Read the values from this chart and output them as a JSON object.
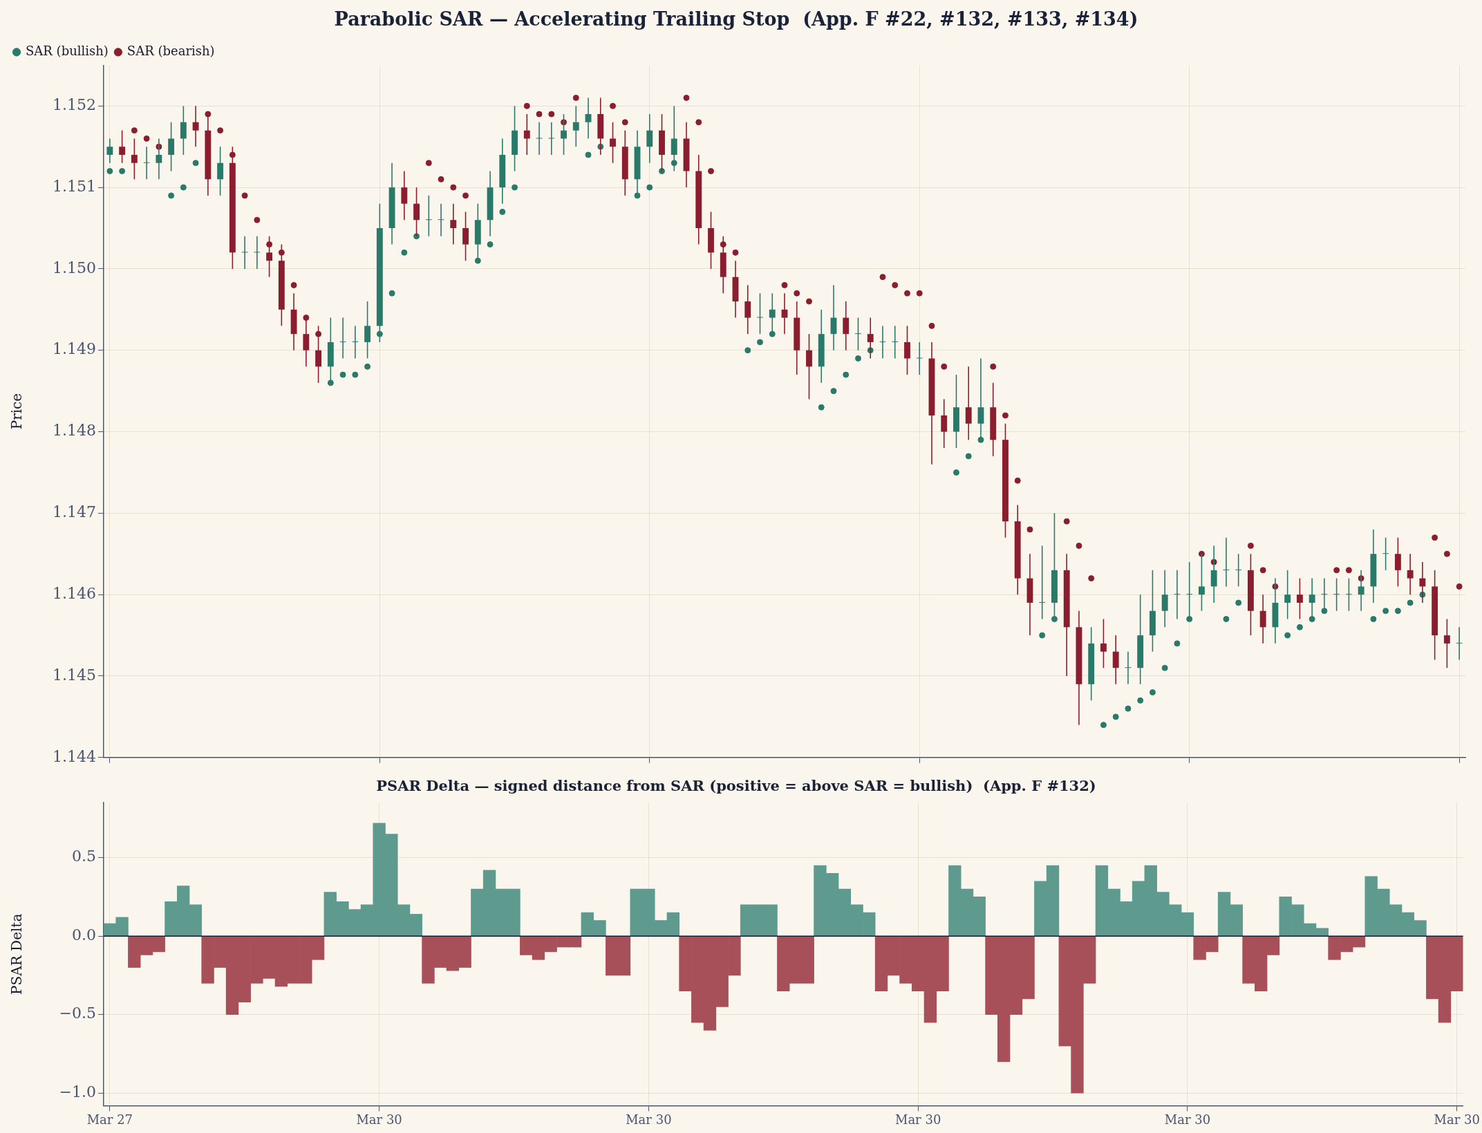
{
  "chart_data": [
    {
      "type": "candlestick",
      "title": "Parabolic SAR — Accelerating Trailing Stop  (App. F #22, #132, #133, #134)",
      "ylabel": "Price",
      "categories": [
        null,
        null,
        null,
        null,
        null,
        null,
        null,
        null,
        null,
        null,
        null,
        null,
        null,
        null,
        null,
        null,
        null,
        null,
        null,
        null,
        null,
        null,
        null,
        null,
        null,
        null,
        null,
        null,
        null,
        null,
        null,
        null,
        null,
        null,
        null,
        null,
        null,
        null,
        null,
        null,
        null,
        null,
        null,
        null,
        null,
        null,
        null,
        null,
        null,
        null,
        null,
        null,
        null,
        null,
        null,
        null,
        null,
        null,
        null,
        null,
        null,
        null,
        null,
        null,
        null,
        null,
        null,
        null,
        null,
        null,
        null,
        null,
        null,
        null,
        null,
        null,
        null,
        null,
        null,
        null,
        null,
        null,
        null,
        null,
        null,
        null,
        null,
        null,
        null,
        null,
        null,
        null,
        null,
        null,
        null,
        null,
        null,
        null,
        null,
        null,
        null,
        null,
        null,
        null,
        null,
        null,
        null,
        null,
        null,
        null,
        null
      ],
      "ohlc": [
        [
          1.1514,
          1.1516,
          1.1513,
          1.1515
        ],
        [
          1.1515,
          1.1517,
          1.1513,
          1.1514
        ],
        [
          1.1514,
          1.1516,
          1.1511,
          1.1513
        ],
        [
          1.1513,
          1.1515,
          1.1511,
          1.1513
        ],
        [
          1.1513,
          1.1516,
          1.1511,
          1.1514
        ],
        [
          1.1514,
          1.1518,
          1.1512,
          1.1516
        ],
        [
          1.1516,
          1.152,
          1.1514,
          1.1518
        ],
        [
          1.1518,
          1.152,
          1.1515,
          1.1517
        ],
        [
          1.1517,
          1.1519,
          1.1509,
          1.1511
        ],
        [
          1.1511,
          1.1515,
          1.1509,
          1.1513
        ],
        [
          1.1513,
          1.1515,
          1.15,
          1.1502
        ],
        [
          1.1502,
          1.1504,
          1.15,
          1.1502
        ],
        [
          1.1502,
          1.1504,
          1.15,
          1.1502
        ],
        [
          1.1502,
          1.1504,
          1.1499,
          1.1501
        ],
        [
          1.1501,
          1.1503,
          1.1493,
          1.1495
        ],
        [
          1.1495,
          1.1497,
          1.149,
          1.1492
        ],
        [
          1.1492,
          1.1494,
          1.1488,
          1.149
        ],
        [
          1.149,
          1.1493,
          1.1486,
          1.1488
        ],
        [
          1.1488,
          1.1494,
          1.1486,
          1.1491
        ],
        [
          1.1491,
          1.1494,
          1.1489,
          1.1491
        ],
        [
          1.1491,
          1.1493,
          1.1489,
          1.1491
        ],
        [
          1.1491,
          1.1496,
          1.1489,
          1.1493
        ],
        [
          1.1493,
          1.1508,
          1.1491,
          1.1505
        ],
        [
          1.1505,
          1.1513,
          1.1503,
          1.151
        ],
        [
          1.151,
          1.1512,
          1.1506,
          1.1508
        ],
        [
          1.1508,
          1.151,
          1.1504,
          1.1506
        ],
        [
          1.1506,
          1.1509,
          1.1504,
          1.1506
        ],
        [
          1.1506,
          1.1508,
          1.1504,
          1.1506
        ],
        [
          1.1506,
          1.1508,
          1.1503,
          1.1505
        ],
        [
          1.1505,
          1.1507,
          1.1501,
          1.1503
        ],
        [
          1.1503,
          1.1508,
          1.1501,
          1.1506
        ],
        [
          1.1506,
          1.1512,
          1.1504,
          1.151
        ],
        [
          1.151,
          1.1516,
          1.1508,
          1.1514
        ],
        [
          1.1514,
          1.152,
          1.1512,
          1.1517
        ],
        [
          1.1517,
          1.1519,
          1.1514,
          1.1516
        ],
        [
          1.1516,
          1.1518,
          1.1514,
          1.1516
        ],
        [
          1.1516,
          1.1518,
          1.1514,
          1.1516
        ],
        [
          1.1516,
          1.1519,
          1.1514,
          1.1517
        ],
        [
          1.1517,
          1.152,
          1.1515,
          1.1518
        ],
        [
          1.1518,
          1.1521,
          1.1516,
          1.1519
        ],
        [
          1.1519,
          1.1521,
          1.1514,
          1.1516
        ],
        [
          1.1516,
          1.1518,
          1.1513,
          1.1515
        ],
        [
          1.1515,
          1.1517,
          1.1509,
          1.1511
        ],
        [
          1.1511,
          1.1517,
          1.1509,
          1.1515
        ],
        [
          1.1515,
          1.1519,
          1.1513,
          1.1517
        ],
        [
          1.1517,
          1.1519,
          1.1512,
          1.1514
        ],
        [
          1.1514,
          1.152,
          1.1512,
          1.1516
        ],
        [
          1.1516,
          1.1518,
          1.151,
          1.1512
        ],
        [
          1.1512,
          1.1514,
          1.1503,
          1.1505
        ],
        [
          1.1505,
          1.1507,
          1.15,
          1.1502
        ],
        [
          1.1502,
          1.1504,
          1.1497,
          1.1499
        ],
        [
          1.1499,
          1.1501,
          1.1494,
          1.1496
        ],
        [
          1.1496,
          1.1498,
          1.1492,
          1.1494
        ],
        [
          1.1494,
          1.1497,
          1.1492,
          1.1494
        ],
        [
          1.1494,
          1.1497,
          1.1492,
          1.1495
        ],
        [
          1.1495,
          1.1497,
          1.1492,
          1.1494
        ],
        [
          1.1494,
          1.1496,
          1.1487,
          1.149
        ],
        [
          1.149,
          1.1492,
          1.1484,
          1.1488
        ],
        [
          1.1488,
          1.1495,
          1.1486,
          1.1492
        ],
        [
          1.1492,
          1.1498,
          1.149,
          1.1494
        ],
        [
          1.1494,
          1.1496,
          1.149,
          1.1492
        ],
        [
          1.1492,
          1.1494,
          1.149,
          1.1492
        ],
        [
          1.1492,
          1.1494,
          1.1489,
          1.1491
        ],
        [
          1.1491,
          1.1493,
          1.1489,
          1.1491
        ],
        [
          1.1491,
          1.1493,
          1.1489,
          1.1491
        ],
        [
          1.1491,
          1.1493,
          1.1487,
          1.1489
        ],
        [
          1.1489,
          1.1491,
          1.1487,
          1.1489
        ],
        [
          1.1489,
          1.1491,
          1.1476,
          1.1482
        ],
        [
          1.1482,
          1.1484,
          1.1478,
          1.148
        ],
        [
          1.148,
          1.1487,
          1.1478,
          1.1483
        ],
        [
          1.1483,
          1.1488,
          1.1479,
          1.1481
        ],
        [
          1.1481,
          1.1489,
          1.1479,
          1.1483
        ],
        [
          1.1483,
          1.1486,
          1.1477,
          1.1479
        ],
        [
          1.1479,
          1.1481,
          1.1467,
          1.1469
        ],
        [
          1.1469,
          1.1471,
          1.146,
          1.1462
        ],
        [
          1.1462,
          1.1465,
          1.1455,
          1.1459
        ],
        [
          1.1459,
          1.1466,
          1.1457,
          1.1459
        ],
        [
          1.1459,
          1.147,
          1.1457,
          1.1463
        ],
        [
          1.1463,
          1.1465,
          1.145,
          1.1456
        ],
        [
          1.1456,
          1.1458,
          1.1444,
          1.1449
        ],
        [
          1.1449,
          1.1456,
          1.1447,
          1.1454
        ],
        [
          1.1454,
          1.1457,
          1.1451,
          1.1453
        ],
        [
          1.1453,
          1.1455,
          1.1449,
          1.1451
        ],
        [
          1.1451,
          1.1453,
          1.1449,
          1.1451
        ],
        [
          1.1451,
          1.146,
          1.1449,
          1.1455
        ],
        [
          1.1455,
          1.1463,
          1.1453,
          1.1458
        ],
        [
          1.1458,
          1.1463,
          1.1456,
          1.146
        ],
        [
          1.146,
          1.1463,
          1.1457,
          1.146
        ],
        [
          1.146,
          1.1464,
          1.1457,
          1.146
        ],
        [
          1.146,
          1.1465,
          1.1458,
          1.1461
        ],
        [
          1.1461,
          1.1466,
          1.1459,
          1.1463
        ],
        [
          1.1463,
          1.1467,
          1.1461,
          1.1463
        ],
        [
          1.1463,
          1.1465,
          1.1461,
          1.1463
        ],
        [
          1.1463,
          1.1465,
          1.1455,
          1.1458
        ],
        [
          1.1458,
          1.146,
          1.1454,
          1.1456
        ],
        [
          1.1456,
          1.1462,
          1.1454,
          1.1459
        ],
        [
          1.1459,
          1.1463,
          1.1457,
          1.146
        ],
        [
          1.146,
          1.1462,
          1.1457,
          1.1459
        ],
        [
          1.1459,
          1.1462,
          1.1457,
          1.146
        ],
        [
          1.146,
          1.1462,
          1.1458,
          1.146
        ],
        [
          1.146,
          1.1462,
          1.1458,
          1.146
        ],
        [
          1.146,
          1.1462,
          1.1458,
          1.146
        ],
        [
          1.146,
          1.1463,
          1.1458,
          1.1461
        ],
        [
          1.1461,
          1.1468,
          1.1459,
          1.1465
        ],
        [
          1.1465,
          1.1467,
          1.1463,
          1.1465
        ],
        [
          1.1465,
          1.1467,
          1.1461,
          1.1463
        ],
        [
          1.1463,
          1.1465,
          1.146,
          1.1462
        ],
        [
          1.1462,
          1.1464,
          1.1459,
          1.1461
        ],
        [
          1.1461,
          1.1463,
          1.1452,
          1.1455
        ],
        [
          1.1455,
          1.1457,
          1.1451,
          1.1454
        ],
        [
          1.1454,
          1.1456,
          1.1452,
          1.1454
        ]
      ],
      "colors": [
        "#2a7a6a",
        "#8b1e2e",
        "#8b1e2e",
        "#2a7a6a",
        "#2a7a6a",
        "#2a7a6a",
        "#2a7a6a",
        "#8b1e2e",
        "#8b1e2e",
        "#2a7a6a",
        "#8b1e2e",
        "#2a7a6a",
        "#2a7a6a",
        "#8b1e2e",
        "#8b1e2e",
        "#8b1e2e",
        "#8b1e2e",
        "#8b1e2e",
        "#2a7a6a",
        "#2a7a6a",
        "#2a7a6a",
        "#2a7a6a",
        "#2a7a6a",
        "#2a7a6a",
        "#8b1e2e",
        "#8b1e2e",
        "#2a7a6a",
        "#2a7a6a",
        "#8b1e2e",
        "#8b1e2e",
        "#2a7a6a",
        "#2a7a6a",
        "#2a7a6a",
        "#2a7a6a",
        "#8b1e2e",
        "#2a7a6a",
        "#2a7a6a",
        "#2a7a6a",
        "#2a7a6a",
        "#2a7a6a",
        "#8b1e2e",
        "#8b1e2e",
        "#8b1e2e",
        "#2a7a6a",
        "#2a7a6a",
        "#8b1e2e",
        "#2a7a6a",
        "#8b1e2e",
        "#8b1e2e",
        "#8b1e2e",
        "#8b1e2e",
        "#8b1e2e",
        "#8b1e2e",
        "#2a7a6a",
        "#2a7a6a",
        "#8b1e2e",
        "#8b1e2e",
        "#8b1e2e",
        "#2a7a6a",
        "#2a7a6a",
        "#8b1e2e",
        "#2a7a6a",
        "#8b1e2e",
        "#2a7a6a",
        "#2a7a6a",
        "#8b1e2e",
        "#2a7a6a",
        "#8b1e2e",
        "#8b1e2e",
        "#2a7a6a",
        "#8b1e2e",
        "#2a7a6a",
        "#8b1e2e",
        "#8b1e2e",
        "#8b1e2e",
        "#8b1e2e",
        "#2a7a6a",
        "#2a7a6a",
        "#8b1e2e",
        "#8b1e2e",
        "#2a7a6a",
        "#8b1e2e",
        "#8b1e2e",
        "#2a7a6a",
        "#2a7a6a",
        "#2a7a6a",
        "#2a7a6a",
        "#2a7a6a",
        "#2a7a6a",
        "#2a7a6a",
        "#2a7a6a",
        "#2a7a6a",
        "#2a7a6a",
        "#8b1e2e",
        "#8b1e2e",
        "#2a7a6a",
        "#2a7a6a",
        "#8b1e2e",
        "#2a7a6a",
        "#2a7a6a",
        "#2a7a6a",
        "#2a7a6a",
        "#2a7a6a",
        "#2a7a6a",
        "#2a7a6a",
        "#8b1e2e",
        "#8b1e2e",
        "#8b1e2e",
        "#8b1e2e",
        "#8b1e2e",
        "#2a7a6a"
      ],
      "series": [
        {
          "type": "scatter",
          "name": "SAR (bullish)",
          "color": "#2a7a6a",
          "values": [
            1.1512,
            1.1512,
            null,
            null,
            null,
            1.1509,
            1.151,
            1.1513,
            null,
            null,
            null,
            null,
            null,
            null,
            null,
            null,
            null,
            null,
            1.1486,
            1.1487,
            1.1487,
            1.1488,
            1.1492,
            1.1497,
            1.1502,
            1.1504,
            null,
            null,
            null,
            null,
            1.1501,
            1.1503,
            1.1507,
            1.151,
            null,
            null,
            null,
            null,
            null,
            1.1514,
            1.1515,
            null,
            null,
            1.1509,
            1.151,
            1.1512,
            1.1513,
            null,
            null,
            null,
            null,
            null,
            1.149,
            1.1491,
            1.1492,
            null,
            null,
            null,
            1.1483,
            1.1485,
            1.1487,
            1.1489,
            1.149,
            null,
            null,
            null,
            null,
            null,
            null,
            1.1475,
            1.1477,
            1.1479,
            null,
            null,
            null,
            null,
            1.1455,
            1.1457,
            null,
            null,
            null,
            1.1444,
            1.1445,
            1.1446,
            1.1447,
            1.1448,
            1.1451,
            1.1454,
            1.1457,
            null,
            null,
            1.1457,
            1.1459,
            null,
            null,
            null,
            1.1455,
            1.1456,
            1.1457,
            1.1458,
            null,
            null,
            null,
            1.1457,
            1.1458,
            1.1458,
            1.1459,
            1.146,
            null,
            null,
            null
          ]
        },
        {
          "type": "scatter",
          "name": "SAR (bearish)",
          "color": "#8b1e2e",
          "values": [
            null,
            null,
            1.1517,
            1.1516,
            1.1515,
            null,
            null,
            null,
            1.1519,
            1.1517,
            1.1514,
            1.1509,
            1.1506,
            1.1503,
            1.1502,
            1.1498,
            1.1494,
            1.1492,
            null,
            null,
            null,
            null,
            null,
            null,
            null,
            null,
            1.1513,
            1.1511,
            1.151,
            1.1509,
            null,
            null,
            null,
            null,
            1.152,
            1.1519,
            1.1519,
            1.1518,
            1.1521,
            null,
            null,
            1.152,
            1.1518,
            null,
            null,
            null,
            null,
            1.1521,
            1.1518,
            1.1512,
            1.1503,
            1.1502,
            null,
            null,
            null,
            1.1498,
            1.1497,
            1.1496,
            null,
            null,
            null,
            null,
            null,
            1.1499,
            1.1498,
            1.1497,
            1.1497,
            1.1493,
            1.1488,
            null,
            null,
            null,
            1.1488,
            1.1482,
            1.1474,
            1.1468,
            null,
            null,
            1.1469,
            1.1466,
            1.1462,
            null,
            null,
            null,
            null,
            null,
            null,
            null,
            null,
            1.1465,
            1.1464,
            null,
            null,
            1.1466,
            1.1463,
            1.1461,
            null,
            null,
            null,
            null,
            1.1463,
            1.1463,
            1.1462,
            null,
            null,
            null,
            null,
            null,
            1.1467,
            1.1465,
            1.1461
          ]
        }
      ],
      "marker": "circle",
      "ylim": [
        1.144,
        1.1525
      ],
      "yticks": [
        1.144,
        1.145,
        1.146,
        1.147,
        1.148,
        1.149,
        {
          "value": 1.15,
          "label": "1.150"
        },
        1.151,
        1.152
      ],
      "grid": true,
      "legend": "top left",
      "tick_labels": "y"
    },
    {
      "type": "bar",
      "title": "PSAR Delta — signed distance from SAR (positive = above SAR = bullish)  (App. F #132)",
      "ylabel": "PSAR Delta",
      "categories": [
        "Mar 27",
        null,
        null,
        null,
        null,
        null,
        null,
        null,
        null,
        null,
        null,
        null,
        null,
        null,
        null,
        null,
        null,
        null,
        null,
        null,
        null,
        null,
        "Mar 30",
        null,
        null,
        null,
        null,
        null,
        null,
        null,
        null,
        null,
        null,
        null,
        null,
        null,
        null,
        null,
        null,
        null,
        null,
        null,
        null,
        null,
        "Mar 30",
        null,
        null,
        null,
        null,
        null,
        null,
        null,
        null,
        null,
        null,
        null,
        null,
        null,
        null,
        null,
        null,
        null,
        null,
        null,
        null,
        null,
        "Mar 30",
        null,
        null,
        null,
        null,
        null,
        null,
        null,
        null,
        null,
        null,
        null,
        null,
        null,
        null,
        null,
        null,
        null,
        null,
        null,
        null,
        null,
        "Mar 30",
        null,
        null,
        null,
        null,
        null,
        null,
        null,
        null,
        null,
        null,
        null,
        null,
        null,
        null,
        null,
        null,
        null,
        null,
        null,
        null,
        null,
        "Mar 30"
      ],
      "values": [
        0.08,
        0.12,
        -0.2,
        -0.12,
        -0.1,
        0.22,
        0.32,
        0.2,
        -0.3,
        -0.2,
        -0.5,
        -0.42,
        -0.3,
        -0.27,
        -0.32,
        -0.3,
        -0.3,
        -0.15,
        0.28,
        0.22,
        0.17,
        0.2,
        0.72,
        0.65,
        0.2,
        0.14,
        -0.3,
        -0.2,
        -0.22,
        -0.2,
        0.3,
        0.42,
        0.3,
        0.3,
        -0.12,
        -0.15,
        -0.1,
        -0.07,
        -0.07,
        0.15,
        0.1,
        -0.25,
        -0.25,
        0.3,
        0.3,
        0.1,
        0.15,
        -0.35,
        -0.55,
        -0.6,
        -0.45,
        -0.25,
        0.2,
        0.2,
        0.2,
        -0.35,
        -0.3,
        -0.3,
        0.45,
        0.4,
        0.3,
        0.2,
        0.15,
        -0.35,
        -0.25,
        -0.3,
        -0.35,
        -0.55,
        -0.35,
        0.45,
        0.3,
        0.25,
        -0.5,
        -0.8,
        -0.5,
        -0.4,
        0.35,
        0.45,
        -0.7,
        -1.0,
        -0.3,
        0.45,
        0.3,
        0.22,
        0.35,
        0.45,
        0.28,
        0.2,
        0.15,
        -0.15,
        -0.1,
        0.28,
        0.2,
        -0.3,
        -0.35,
        -0.12,
        0.25,
        0.2,
        0.08,
        0.05,
        -0.15,
        -0.1,
        -0.07,
        0.38,
        0.3,
        0.2,
        0.15,
        0.1,
        -0.4,
        -0.55,
        -0.35
      ],
      "colors": [
        "#5e9a8e",
        "#5e9a8e",
        "#a8505a",
        "#a8505a",
        "#a8505a",
        "#5e9a8e",
        "#5e9a8e",
        "#5e9a8e",
        "#a8505a",
        "#a8505a",
        "#a8505a",
        "#a8505a",
        "#a8505a",
        "#a8505a",
        "#a8505a",
        "#a8505a",
        "#a8505a",
        "#a8505a",
        "#5e9a8e",
        "#5e9a8e",
        "#5e9a8e",
        "#5e9a8e",
        "#5e9a8e",
        "#5e9a8e",
        "#5e9a8e",
        "#5e9a8e",
        "#a8505a",
        "#a8505a",
        "#a8505a",
        "#a8505a",
        "#5e9a8e",
        "#5e9a8e",
        "#5e9a8e",
        "#5e9a8e",
        "#a8505a",
        "#a8505a",
        "#a8505a",
        "#a8505a",
        "#a8505a",
        "#5e9a8e",
        "#5e9a8e",
        "#a8505a",
        "#a8505a",
        "#5e9a8e",
        "#5e9a8e",
        "#5e9a8e",
        "#5e9a8e",
        "#a8505a",
        "#a8505a",
        "#a8505a",
        "#a8505a",
        "#a8505a",
        "#5e9a8e",
        "#5e9a8e",
        "#5e9a8e",
        "#a8505a",
        "#a8505a",
        "#a8505a",
        "#5e9a8e",
        "#5e9a8e",
        "#5e9a8e",
        "#5e9a8e",
        "#5e9a8e",
        "#a8505a",
        "#a8505a",
        "#a8505a",
        "#a8505a",
        "#a8505a",
        "#a8505a",
        "#5e9a8e",
        "#5e9a8e",
        "#5e9a8e",
        "#a8505a",
        "#a8505a",
        "#a8505a",
        "#a8505a",
        "#5e9a8e",
        "#5e9a8e",
        "#a8505a",
        "#a8505a",
        "#a8505a",
        "#5e9a8e",
        "#5e9a8e",
        "#5e9a8e",
        "#5e9a8e",
        "#5e9a8e",
        "#5e9a8e",
        "#5e9a8e",
        "#5e9a8e",
        "#a8505a",
        "#a8505a",
        "#5e9a8e",
        "#5e9a8e",
        "#a8505a",
        "#a8505a",
        "#a8505a",
        "#5e9a8e",
        "#5e9a8e",
        "#5e9a8e",
        "#5e9a8e",
        "#a8505a",
        "#a8505a",
        "#a8505a",
        "#5e9a8e",
        "#5e9a8e",
        "#5e9a8e",
        "#5e9a8e",
        "#5e9a8e",
        "#a8505a",
        "#a8505a",
        "#a8505a"
      ],
      "ylim": [
        -1.08,
        0.85
      ],
      "yticks": [
        {
          "value": -1,
          "label": "−1.0"
        },
        {
          "value": -0.5,
          "label": "−0.5"
        },
        {
          "value": 0,
          "label": "0.0"
        },
        {
          "value": 0.5,
          "label": "0.5"
        }
      ],
      "grid": true,
      "ref_lines": [
        {
          "axis": "y",
          "value": 0,
          "color": "#1a1a2e"
        }
      ]
    }
  ]
}
